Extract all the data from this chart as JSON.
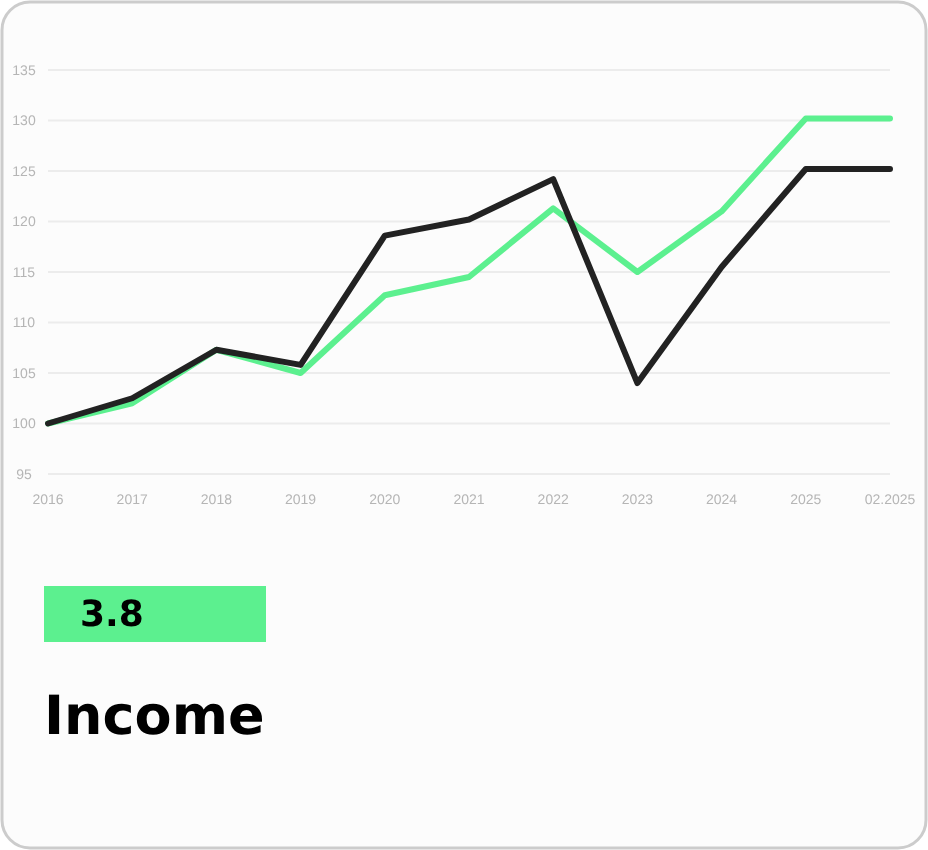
{
  "chart_data": {
    "type": "line",
    "title": "Income",
    "annotations": [
      "3.8"
    ],
    "categories": [
      "2016",
      "2017",
      "2018",
      "2019",
      "2020",
      "2021",
      "2022",
      "2023",
      "2024",
      "2025",
      "02.2025"
    ],
    "series": [
      {
        "color": "#5cf08f",
        "values": [
          100,
          102,
          107.3,
          105,
          112.7,
          114.5,
          121.3,
          115,
          121,
          130.2,
          130.2
        ]
      },
      {
        "color": "#222222",
        "values": [
          100,
          102.5,
          107.3,
          105.8,
          118.6,
          120.2,
          124.2,
          104,
          115.5,
          125.2,
          125.2
        ]
      }
    ],
    "ylim": [
      95,
      135
    ],
    "yticks": [
      95,
      100,
      105,
      110,
      115,
      120,
      125,
      130,
      135
    ],
    "grid": "y",
    "line_style": "solid",
    "marker": "none"
  }
}
